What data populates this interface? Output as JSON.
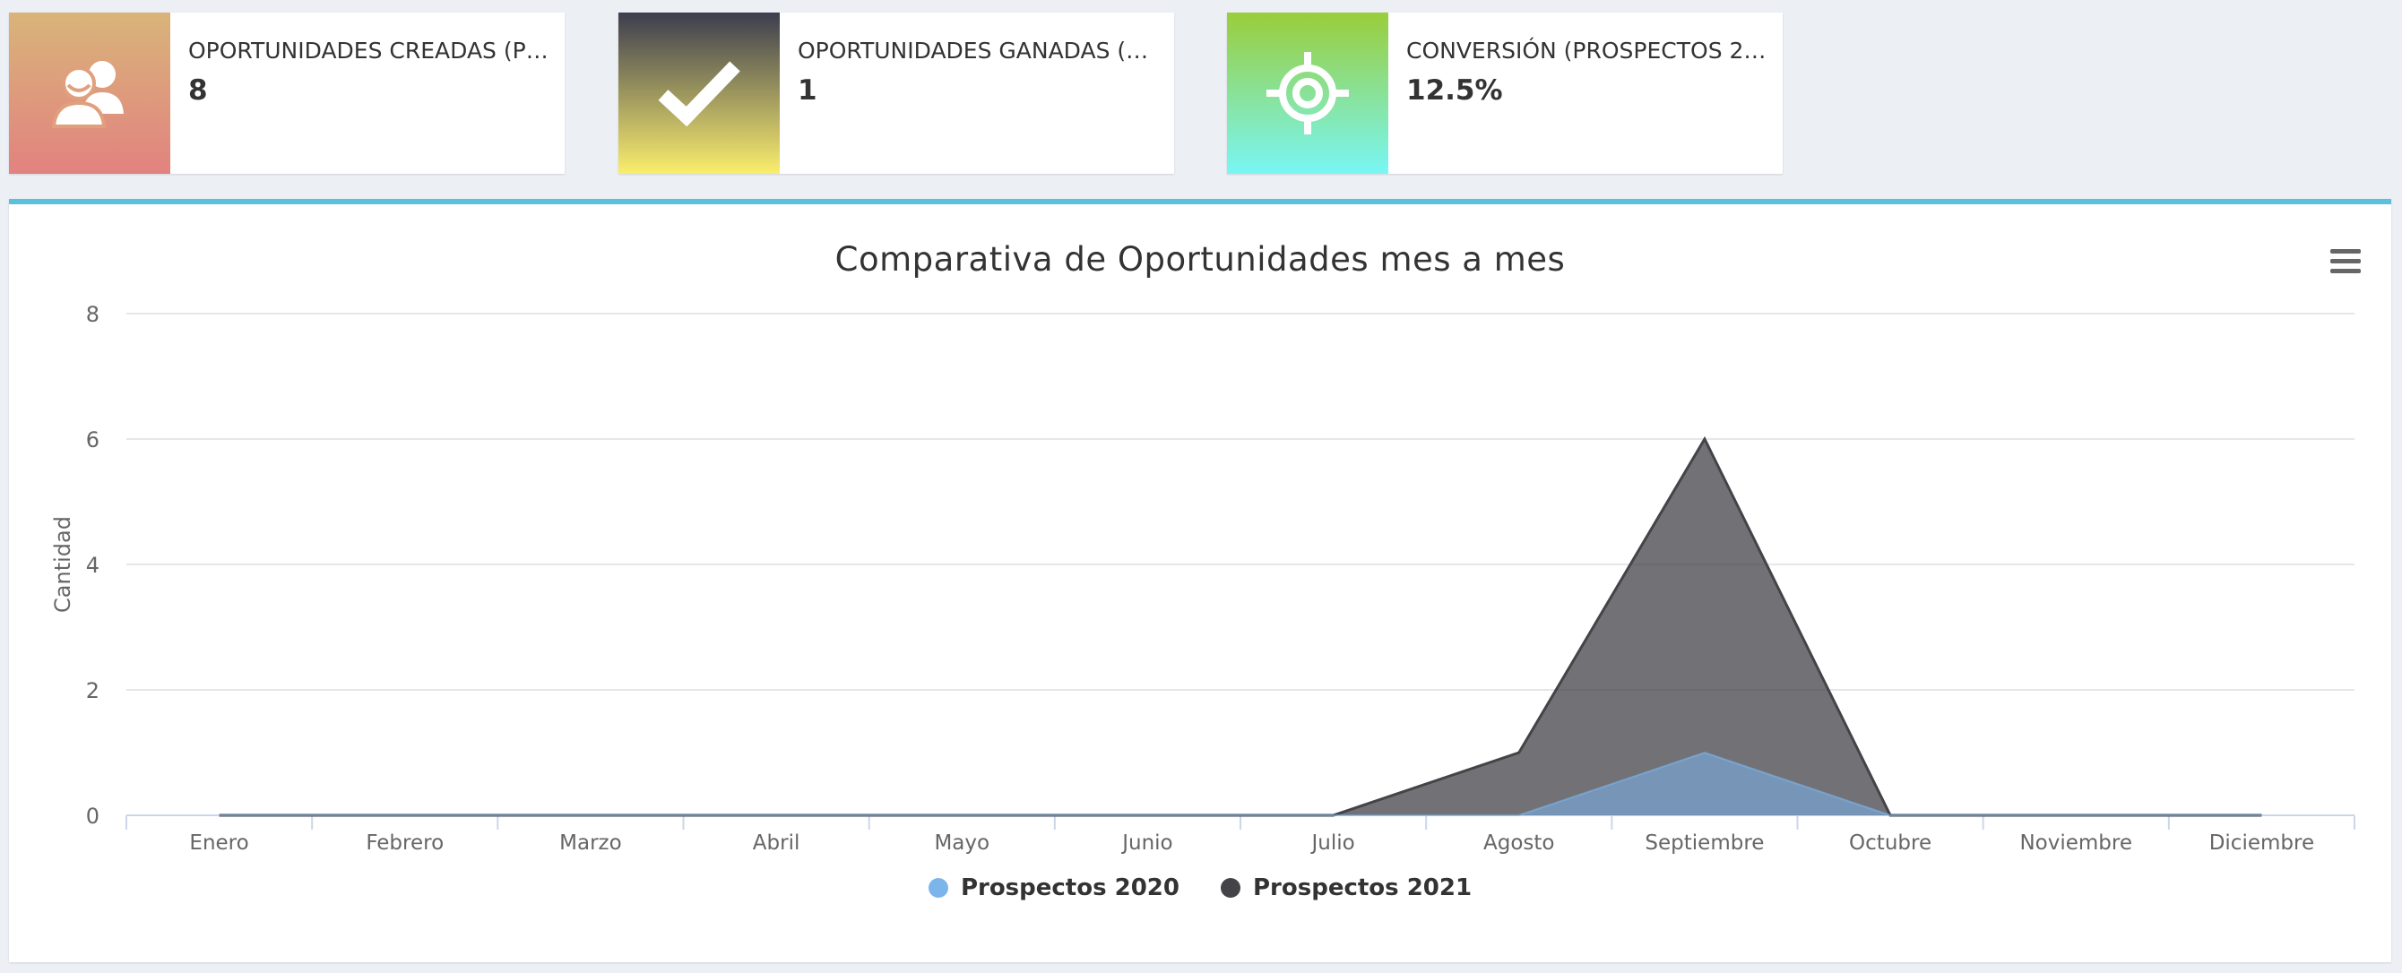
{
  "info_boxes": [
    {
      "label": "OPORTUNIDADES CREADAS (PR…",
      "value": "8",
      "icon": "users-icon"
    },
    {
      "label": "OPORTUNIDADES GANADAS (P…",
      "value": "1",
      "icon": "check-icon"
    },
    {
      "label": "CONVERSIÓN (PROSPECTOS 20…",
      "value": "12.5%",
      "icon": "target-icon"
    }
  ],
  "chart_panel": {
    "accent_color": "#5bc0de",
    "menu_icon": "hamburger-menu-icon"
  },
  "chart_data": {
    "type": "area",
    "title": "Comparativa de Oportunidades mes a mes",
    "xlabel": "",
    "ylabel": "Cantidad",
    "categories": [
      "Enero",
      "Febrero",
      "Marzo",
      "Abril",
      "Mayo",
      "Junio",
      "Julio",
      "Agosto",
      "Septiembre",
      "Octubre",
      "Noviembre",
      "Diciembre"
    ],
    "ylim": [
      0,
      8
    ],
    "yticks": [
      "0",
      "2",
      "4",
      "6",
      "8"
    ],
    "grid": true,
    "legend_position": "bottom-center",
    "series": [
      {
        "name": "Prospectos 2020",
        "color": "#7cb5ec",
        "values": [
          0,
          0,
          0,
          0,
          0,
          0,
          0,
          0,
          1,
          0,
          0,
          0
        ]
      },
      {
        "name": "Prospectos 2021",
        "color": "#434348",
        "values": [
          0,
          0,
          0,
          0,
          0,
          0,
          0,
          1,
          6,
          0,
          0,
          0
        ]
      }
    ]
  }
}
